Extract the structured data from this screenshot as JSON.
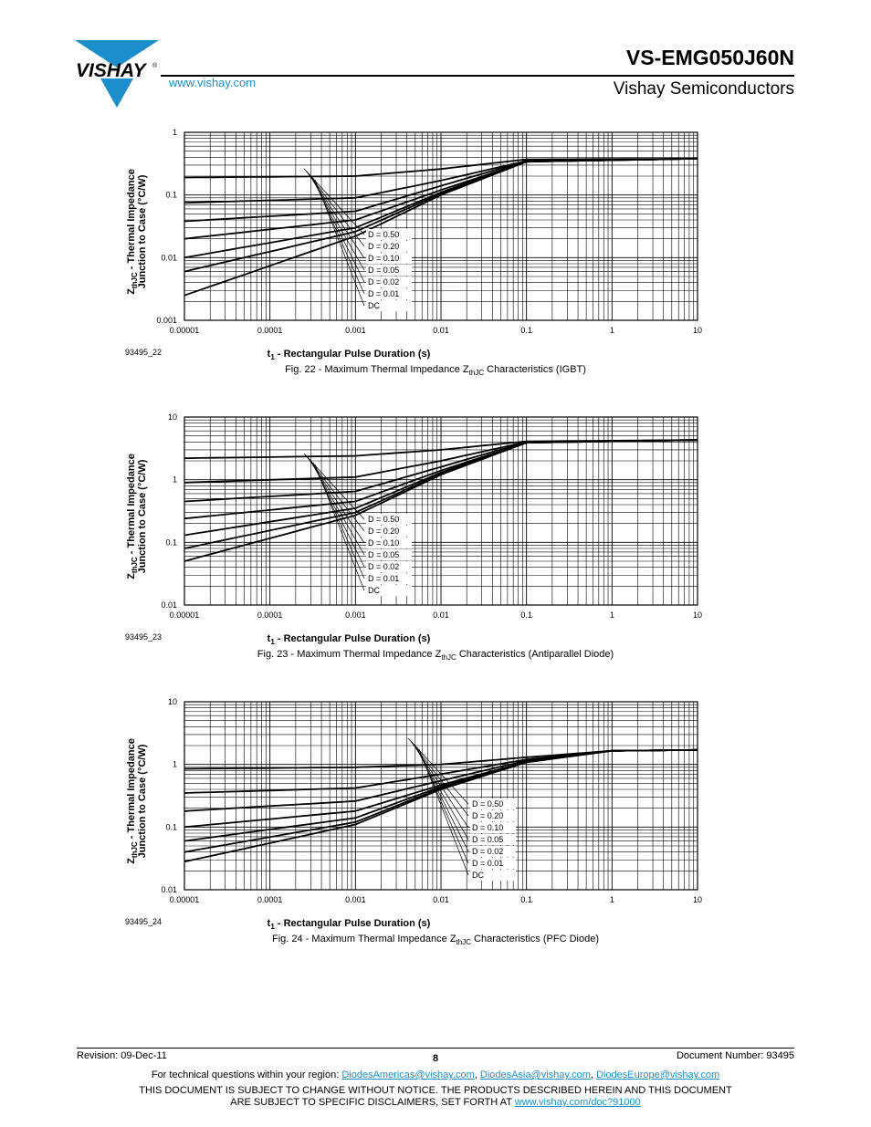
{
  "header": {
    "brand": "VISHAY",
    "part_number": "VS-EMG050J60N",
    "website": "www.vishay.com",
    "company": "Vishay Semiconductors"
  },
  "figures": [
    {
      "id": "93495_22",
      "caption_prefix": "Fig. 22 - Maximum Thermal Impedance Z",
      "caption_sub": "thJC",
      "caption_suffix": " Characteristics (IGBT)",
      "ylabel_line1_main": "Z",
      "ylabel_line1_sub": "thJC",
      "ylabel_line1_rest": " - Thermal Impedance",
      "ylabel_line2": "Junction to Case (°C/W)",
      "xlabel_main": "t",
      "xlabel_sub": "1",
      "xlabel_rest": " - Rectangular Pulse Duration (s)",
      "legend": [
        "D = 0.50",
        "D = 0.20",
        "D = 0.10",
        "D = 0.05",
        "D = 0.02",
        "D = 0.01",
        "DC"
      ]
    },
    {
      "id": "93495_23",
      "caption_prefix": "Fig. 23 - Maximum Thermal Impedance Z",
      "caption_sub": "thJC",
      "caption_suffix": " Characteristics (Antiparallel Diode)",
      "ylabel_line1_main": "Z",
      "ylabel_line1_sub": "thJC",
      "ylabel_line1_rest": " - Thermal Impedance",
      "ylabel_line2": "Junction to Case (°C/W)",
      "xlabel_main": "t",
      "xlabel_sub": "1",
      "xlabel_rest": " - Rectangular Pulse Duration (s)",
      "legend": [
        "D = 0.50",
        "D = 0.20",
        "D = 0.10",
        "D = 0.05",
        "D = 0.02",
        "D = 0.01",
        "DC"
      ]
    },
    {
      "id": "93495_24",
      "caption_prefix": "Fig. 24 - Maximum Thermal Impedance Z",
      "caption_sub": "thJC",
      "caption_suffix": " Characteristics (PFC Diode)",
      "ylabel_line1_main": "Z",
      "ylabel_line1_sub": "thJC",
      "ylabel_line1_rest": " - Thermal Impedance",
      "ylabel_line2": "Junction to Case (°C/W)",
      "xlabel_main": "t",
      "xlabel_sub": "1",
      "xlabel_rest": " - Rectangular Pulse Duration (s)",
      "legend": [
        "D = 0.50",
        "D = 0.20",
        "D = 0.10",
        "D = 0.05",
        "D = 0.02",
        "D = 0.01",
        "DC"
      ]
    }
  ],
  "chart_data": [
    {
      "type": "line",
      "log_x": true,
      "log_y": true,
      "xlim": [
        1e-05,
        10
      ],
      "ylim": [
        0.001,
        1
      ],
      "xticks": [
        "0.00001",
        "0.0001",
        "0.001",
        "0.01",
        "0.1",
        "1",
        "10"
      ],
      "yticks": [
        "1",
        "0.1",
        "0.01",
        "0.001"
      ],
      "grid": true,
      "dc_steady": 0.38,
      "series": [
        {
          "name": "D = 0.50",
          "x": [
            1e-05,
            0.001,
            0.01,
            0.1,
            10
          ],
          "y": [
            0.19,
            0.2,
            0.26,
            0.37,
            0.38
          ]
        },
        {
          "name": "D = 0.20",
          "x": [
            1e-05,
            0.001,
            0.01,
            0.1,
            10
          ],
          "y": [
            0.075,
            0.09,
            0.17,
            0.35,
            0.38
          ]
        },
        {
          "name": "D = 0.10",
          "x": [
            1e-05,
            0.001,
            0.01,
            0.1,
            10
          ],
          "y": [
            0.038,
            0.055,
            0.14,
            0.35,
            0.38
          ]
        },
        {
          "name": "D = 0.05",
          "x": [
            1e-05,
            0.001,
            0.01,
            0.1,
            10
          ],
          "y": [
            0.02,
            0.04,
            0.12,
            0.34,
            0.38
          ]
        },
        {
          "name": "D = 0.02",
          "x": [
            1e-05,
            0.001,
            0.01,
            0.1,
            10
          ],
          "y": [
            0.01,
            0.03,
            0.11,
            0.34,
            0.38
          ]
        },
        {
          "name": "D = 0.01",
          "x": [
            1e-05,
            0.001,
            0.01,
            0.1,
            10
          ],
          "y": [
            0.006,
            0.026,
            0.105,
            0.34,
            0.38
          ]
        },
        {
          "name": "DC",
          "x": [
            1e-05,
            0.001,
            0.01,
            0.1,
            10
          ],
          "y": [
            0.0025,
            0.022,
            0.1,
            0.34,
            0.38
          ]
        }
      ]
    },
    {
      "type": "line",
      "log_x": true,
      "log_y": true,
      "xlim": [
        1e-05,
        10
      ],
      "ylim": [
        0.01,
        10
      ],
      "xticks": [
        "0.00001",
        "0.0001",
        "0.001",
        "0.01",
        "0.1",
        "1",
        "10"
      ],
      "yticks": [
        "10",
        "1",
        "0.1",
        "0.01"
      ],
      "grid": true,
      "dc_steady": 4.3,
      "series": [
        {
          "name": "D = 0.50",
          "x": [
            1e-05,
            0.001,
            0.01,
            0.1,
            10
          ],
          "y": [
            2.2,
            2.4,
            3.0,
            4.1,
            4.3
          ]
        },
        {
          "name": "D = 0.20",
          "x": [
            1e-05,
            0.001,
            0.01,
            0.1,
            10
          ],
          "y": [
            0.9,
            1.1,
            2.0,
            4.0,
            4.3
          ]
        },
        {
          "name": "D = 0.10",
          "x": [
            1e-05,
            0.001,
            0.01,
            0.1,
            10
          ],
          "y": [
            0.45,
            0.65,
            1.6,
            4.0,
            4.3
          ]
        },
        {
          "name": "D = 0.05",
          "x": [
            1e-05,
            0.001,
            0.01,
            0.1,
            10
          ],
          "y": [
            0.24,
            0.45,
            1.4,
            3.9,
            4.3
          ]
        },
        {
          "name": "D = 0.02",
          "x": [
            1e-05,
            0.001,
            0.01,
            0.1,
            10
          ],
          "y": [
            0.13,
            0.35,
            1.3,
            3.9,
            4.3
          ]
        },
        {
          "name": "D = 0.01",
          "x": [
            1e-05,
            0.001,
            0.01,
            0.1,
            10
          ],
          "y": [
            0.08,
            0.3,
            1.25,
            3.9,
            4.3
          ]
        },
        {
          "name": "DC",
          "x": [
            1e-05,
            0.001,
            0.01,
            0.1,
            10
          ],
          "y": [
            0.05,
            0.27,
            1.2,
            3.9,
            4.3
          ]
        }
      ]
    },
    {
      "type": "line",
      "log_x": true,
      "log_y": true,
      "xlim": [
        1e-05,
        10
      ],
      "ylim": [
        0.01,
        10
      ],
      "xticks": [
        "0.00001",
        "0.0001",
        "0.001",
        "0.01",
        "0.1",
        "1",
        "10"
      ],
      "yticks": [
        "10",
        "1",
        "0.1",
        "0.01"
      ],
      "grid": true,
      "dc_steady": 1.7,
      "series": [
        {
          "name": "D = 0.50",
          "x": [
            1e-05,
            0.001,
            0.01,
            0.1,
            1,
            10
          ],
          "y": [
            0.85,
            0.9,
            1.0,
            1.3,
            1.65,
            1.7
          ]
        },
        {
          "name": "D = 0.20",
          "x": [
            1e-05,
            0.001,
            0.01,
            0.1,
            1,
            10
          ],
          "y": [
            0.35,
            0.42,
            0.7,
            1.2,
            1.65,
            1.7
          ]
        },
        {
          "name": "D = 0.10",
          "x": [
            1e-05,
            0.001,
            0.01,
            0.1,
            1,
            10
          ],
          "y": [
            0.18,
            0.26,
            0.55,
            1.15,
            1.65,
            1.7
          ]
        },
        {
          "name": "D = 0.05",
          "x": [
            1e-05,
            0.001,
            0.01,
            0.1,
            1,
            10
          ],
          "y": [
            0.1,
            0.18,
            0.47,
            1.1,
            1.65,
            1.7
          ]
        },
        {
          "name": "D = 0.02",
          "x": [
            1e-05,
            0.001,
            0.01,
            0.1,
            1,
            10
          ],
          "y": [
            0.06,
            0.14,
            0.44,
            1.1,
            1.65,
            1.7
          ]
        },
        {
          "name": "D = 0.01",
          "x": [
            1e-05,
            0.001,
            0.01,
            0.1,
            1,
            10
          ],
          "y": [
            0.04,
            0.12,
            0.42,
            1.1,
            1.65,
            1.7
          ]
        },
        {
          "name": "DC",
          "x": [
            1e-05,
            0.001,
            0.01,
            0.1,
            1,
            10
          ],
          "y": [
            0.028,
            0.11,
            0.4,
            1.08,
            1.65,
            1.7
          ]
        }
      ]
    }
  ],
  "footer": {
    "revision": "Revision: 09-Dec-11",
    "page": "8",
    "document_number": "Document Number: 93495",
    "questions_prefix": "For technical questions within your region: ",
    "email_americas": "DiodesAmericas@vishay.com",
    "separator1": ", ",
    "email_asia": "DiodesAsia@vishay.com",
    "separator2": ", ",
    "email_europe": "DiodesEurope@vishay.com",
    "disclaimer_line1": "THIS DOCUMENT IS SUBJECT TO CHANGE WITHOUT NOTICE. THE PRODUCTS DESCRIBED HEREIN AND THIS DOCUMENT",
    "disclaimer_line2_prefix": "ARE SUBJECT TO SPECIFIC DISCLAIMERS, SET FORTH AT ",
    "disclaimer_link": "www.vishay.com/doc?91000"
  },
  "colors": {
    "brand_blue": "#1d8ecc",
    "line": "#000000"
  }
}
